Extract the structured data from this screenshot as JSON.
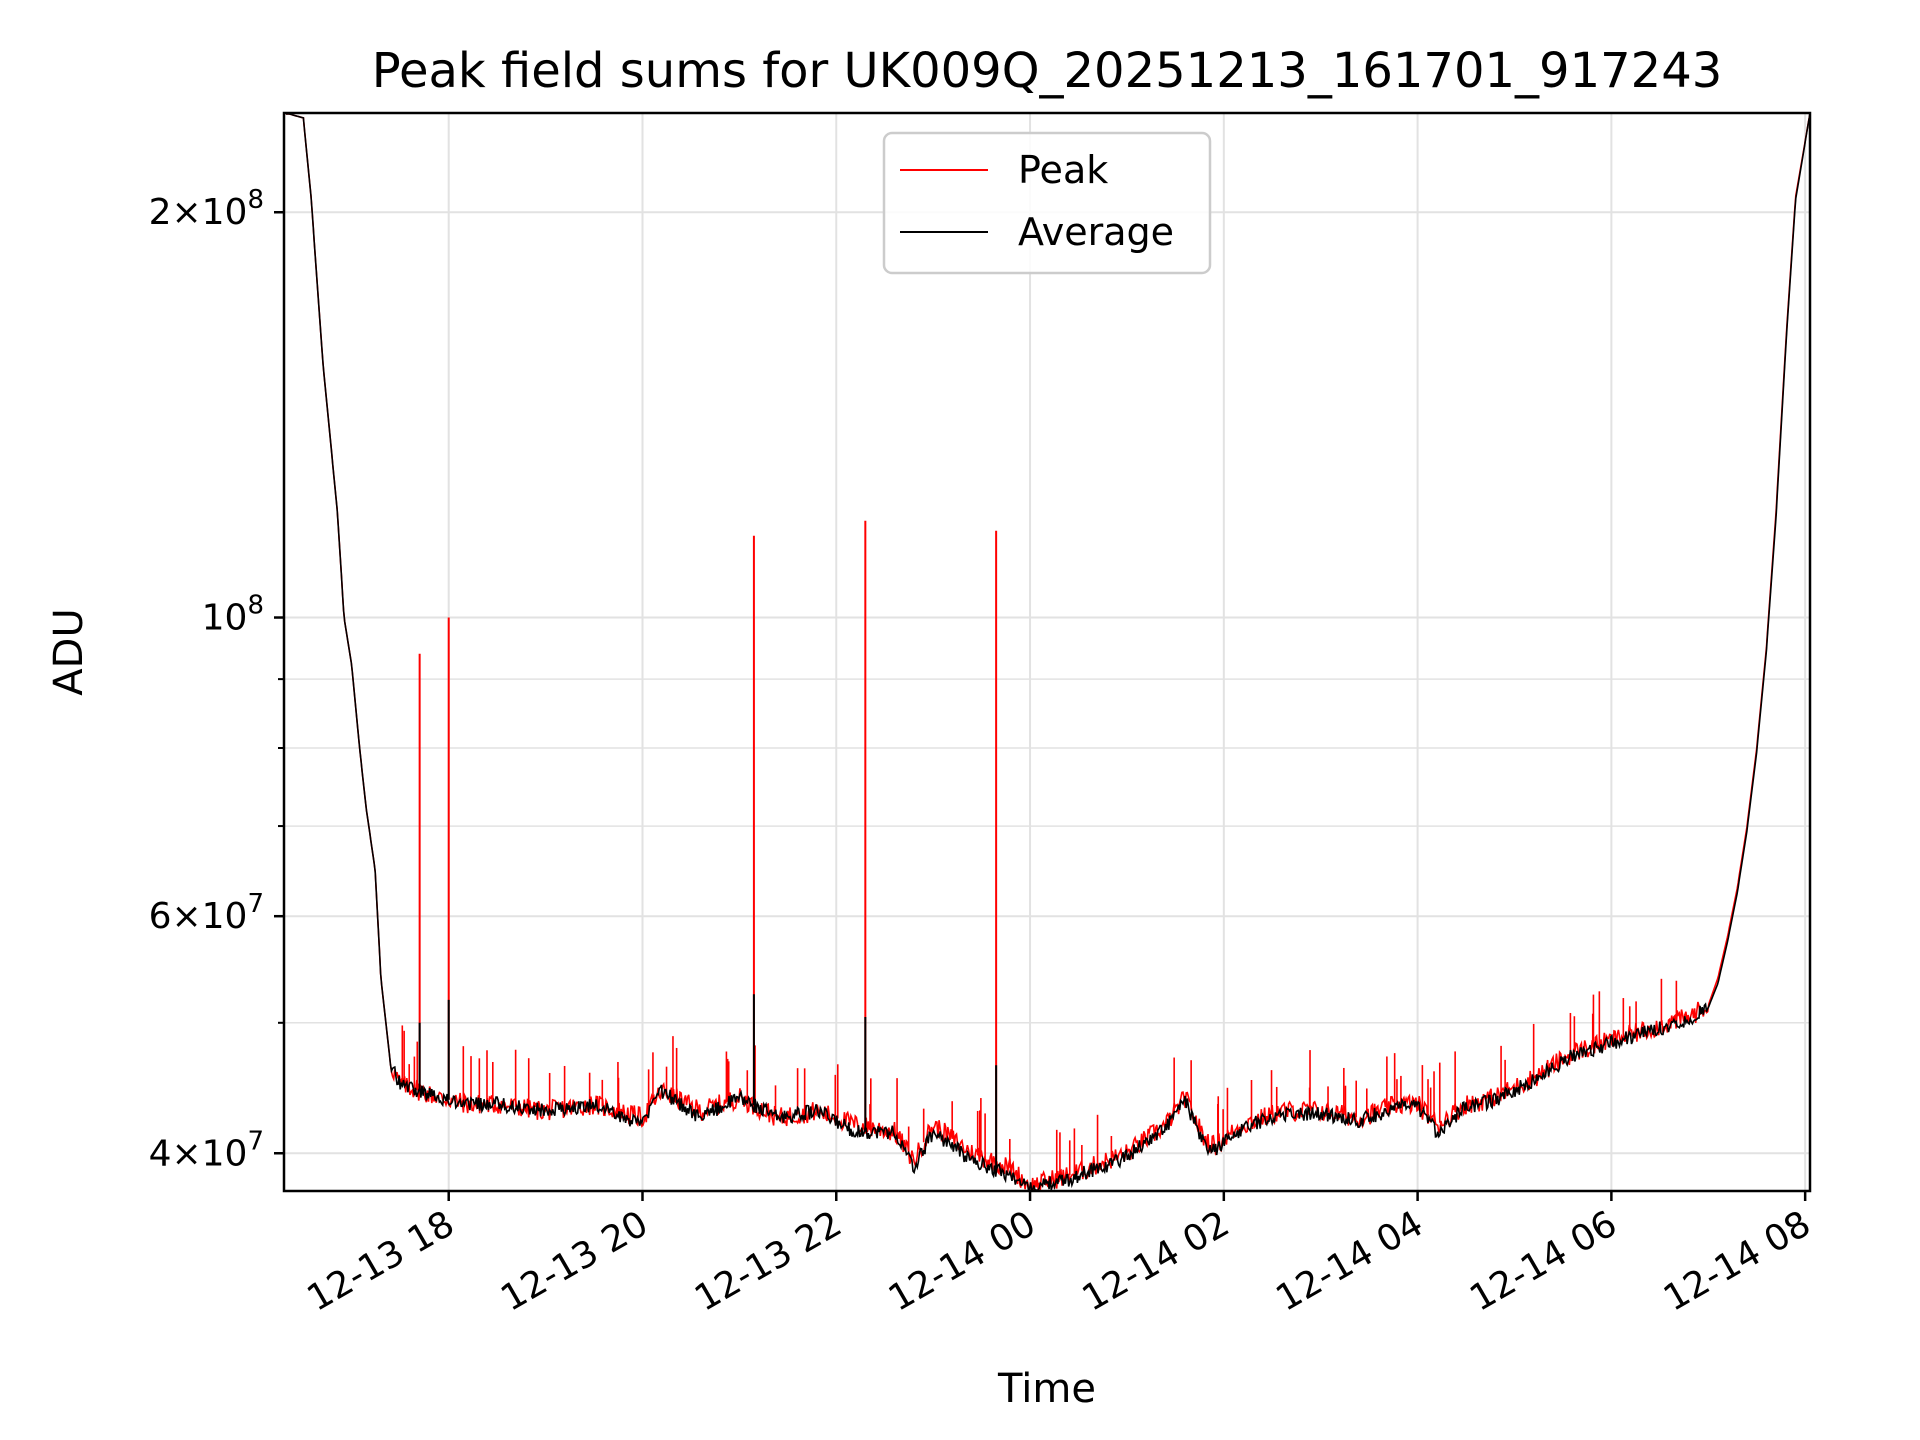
{
  "chart_data": {
    "type": "line",
    "title": "Peak field sums for UK009Q_20251213_161701_917243",
    "xlabel": "Time",
    "ylabel": "ADU",
    "yscale": "log",
    "grid": true,
    "legend_position": "top-center",
    "x_range_hours": [
      -1.7,
      14.05
    ],
    "ylim": [
      37500000,
      237000000
    ],
    "x_ticks": [
      {
        "hour": 0,
        "label": "12-13 18"
      },
      {
        "hour": 2,
        "label": "12-13 20"
      },
      {
        "hour": 4,
        "label": "12-13 22"
      },
      {
        "hour": 6,
        "label": "12-14 00"
      },
      {
        "hour": 8,
        "label": "12-14 02"
      },
      {
        "hour": 10,
        "label": "12-14 04"
      },
      {
        "hour": 12,
        "label": "12-14 06"
      },
      {
        "hour": 14,
        "label": "12-14 08"
      }
    ],
    "y_ticks": [
      {
        "value": 200000000,
        "mantissa": "2",
        "exponent": "8"
      },
      {
        "value": 100000000,
        "mantissa": "",
        "exponent": "8"
      },
      {
        "value": 60000000,
        "mantissa": "6",
        "exponent": "7"
      },
      {
        "value": 40000000,
        "mantissa": "4",
        "exponent": "7"
      }
    ],
    "y_minor_ticks": [
      300000000,
      90000000,
      80000000,
      70000000,
      50000000
    ],
    "series": [
      {
        "name": "Peak",
        "color": "#ff0000",
        "x_hours": [
          -1.68,
          -1.5,
          -1.42,
          -1.3,
          -1.15,
          -1.08,
          -1.0,
          -0.92,
          -0.85,
          -0.76,
          -0.7,
          -0.6,
          -0.5,
          -0.3,
          -0.1,
          0.2,
          0.5,
          1.0,
          1.5,
          2.0,
          2.2,
          2.6,
          3.0,
          3.4,
          3.8,
          4.2,
          4.6,
          4.8,
          5.0,
          5.2,
          5.4,
          5.6,
          5.8,
          6.0,
          6.2,
          6.4,
          6.6,
          6.8,
          7.0,
          7.2,
          7.4,
          7.6,
          7.8,
          7.9,
          8.2,
          8.6,
          9.0,
          9.4,
          9.8,
          10.0,
          10.2,
          10.5,
          10.8,
          11.2,
          11.6,
          12.0,
          12.4,
          12.8,
          13.0,
          13.1,
          13.2,
          13.3,
          13.4,
          13.5,
          13.6,
          13.7,
          13.8,
          13.9,
          14.05
        ],
        "values": [
          237000000,
          235000000,
          205000000,
          155000000,
          120000000,
          100000000,
          92000000,
          80000000,
          72000000,
          65000000,
          54000000,
          46500000,
          45000000,
          44500000,
          44000000,
          43500000,
          43500000,
          43000000,
          43500000,
          42500000,
          44500000,
          43000000,
          44000000,
          42500000,
          43000000,
          42000000,
          41500000,
          39500000,
          42000000,
          41000000,
          40000000,
          39500000,
          39000000,
          37800000,
          38200000,
          38500000,
          39000000,
          39500000,
          40000000,
          41000000,
          42000000,
          44000000,
          41000000,
          40500000,
          42000000,
          43000000,
          43000000,
          42500000,
          43500000,
          43500000,
          42000000,
          43500000,
          44000000,
          45500000,
          47500000,
          48500000,
          49500000,
          50500000,
          51500000,
          54000000,
          58000000,
          63000000,
          70000000,
          80000000,
          95000000,
          120000000,
          160000000,
          205000000,
          237000000
        ],
        "spikes": [
          {
            "hour": -0.3,
            "value": 94000000
          },
          {
            "hour": 0.0,
            "value": 100000000
          },
          {
            "hour": 3.15,
            "value": 115000000
          },
          {
            "hour": 4.3,
            "value": 118000000
          },
          {
            "hour": 5.65,
            "value": 116000000
          }
        ]
      },
      {
        "name": "Average",
        "color": "#000000",
        "x_hours": [
          -1.68,
          -1.5,
          -1.42,
          -1.3,
          -1.15,
          -1.08,
          -1.0,
          -0.92,
          -0.85,
          -0.76,
          -0.7,
          -0.6,
          -0.5,
          -0.3,
          -0.1,
          0.2,
          0.5,
          1.0,
          1.5,
          2.0,
          2.2,
          2.6,
          3.0,
          3.4,
          3.8,
          4.2,
          4.6,
          4.8,
          5.0,
          5.2,
          5.4,
          5.6,
          5.8,
          6.0,
          6.2,
          6.4,
          6.6,
          6.8,
          7.0,
          7.2,
          7.4,
          7.6,
          7.8,
          7.9,
          8.2,
          8.6,
          9.0,
          9.4,
          9.8,
          10.0,
          10.2,
          10.5,
          10.8,
          11.2,
          11.6,
          12.0,
          12.4,
          12.8,
          13.0,
          13.1,
          13.2,
          13.3,
          13.4,
          13.5,
          13.6,
          13.7,
          13.8,
          13.9,
          14.05
        ],
        "values": [
          237000000,
          235000000,
          205000000,
          155000000,
          120000000,
          100000000,
          92000000,
          80000000,
          72000000,
          65000000,
          54000000,
          46500000,
          45000000,
          44500000,
          44000000,
          43500000,
          43500000,
          43000000,
          43500000,
          42000000,
          44500000,
          42500000,
          44000000,
          42500000,
          43000000,
          41500000,
          41500000,
          39000000,
          41500000,
          40500000,
          39500000,
          39000000,
          38500000,
          37600000,
          38000000,
          38200000,
          38800000,
          39200000,
          39800000,
          40800000,
          41800000,
          43800000,
          40500000,
          40200000,
          41800000,
          42800000,
          42800000,
          42300000,
          43300000,
          43300000,
          41500000,
          43300000,
          43800000,
          45300000,
          47300000,
          48300000,
          49300000,
          50300000,
          51300000,
          53500000,
          57500000,
          62500000,
          69500000,
          79500000,
          94500000,
          119000000,
          159000000,
          204000000,
          237000000
        ],
        "spikes": [
          {
            "hour": -0.3,
            "value": 50000000
          },
          {
            "hour": 0.0,
            "value": 52000000
          },
          {
            "hour": 3.15,
            "value": 52500000
          },
          {
            "hour": 4.3,
            "value": 50500000
          },
          {
            "hour": 5.65,
            "value": 46500000
          }
        ]
      }
    ]
  }
}
